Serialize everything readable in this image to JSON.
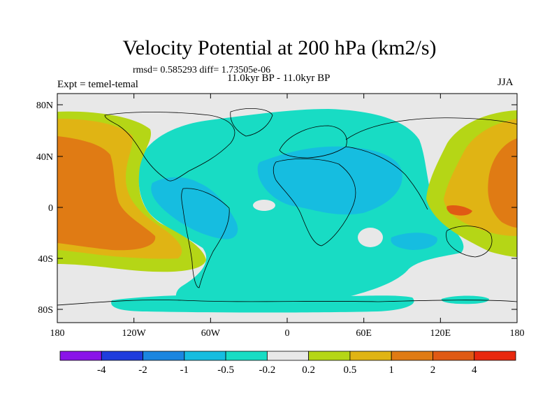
{
  "title": "Velocity Potential at 200 hPa (km2/s)",
  "stats_line": "rmsd= 0.585293 diff= 1.73505e-06",
  "period": "11.0kyr BP - 11.0kyr BP",
  "expt_label": "Expt = temel-temal",
  "season": "JJA",
  "lat_ticks": [
    "80N",
    "40N",
    "0",
    "40S",
    "80S"
  ],
  "lon_ticks": [
    "180",
    "120W",
    "60W",
    "0",
    "60E",
    "120E",
    "180"
  ],
  "colorbar": {
    "labels": [
      "-4",
      "-2",
      "-1",
      "-0.5",
      "-0.2",
      "0.2",
      "0.5",
      "1",
      "2",
      "4"
    ],
    "colors": [
      "#8a14e8",
      "#1f3ddc",
      "#1b86e0",
      "#16bde0",
      "#18dcc4",
      "#e8e8e8",
      "#b5d616",
      "#e0b414",
      "#e07b14",
      "#e05a14",
      "#e8280e"
    ]
  }
}
